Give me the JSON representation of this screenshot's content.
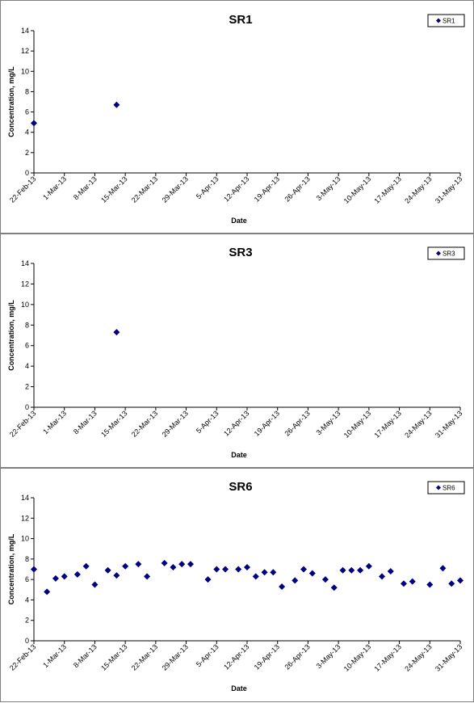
{
  "chart_data": [
    {
      "type": "scatter",
      "title": "SR1",
      "xlabel": "Date",
      "ylabel": "Concentration, mg/L",
      "ylim": [
        0,
        14
      ],
      "yticks": [
        0,
        2,
        4,
        6,
        8,
        10,
        12,
        14
      ],
      "xlim": [
        "2013-02-22",
        "2013-05-31"
      ],
      "xticks": [
        "22-Feb-13",
        "1-Mar-13",
        "8-Mar-13",
        "15-Mar-13",
        "22-Mar-13",
        "29-Mar-13",
        "5-Apr-13",
        "12-Apr-13",
        "19-Apr-13",
        "26-Apr-13",
        "3-May-13",
        "10-May-13",
        "17-May-13",
        "24-May-13",
        "31-May-13"
      ],
      "legend": "top-right",
      "grid": false,
      "marker_color": "#000080",
      "series": [
        {
          "name": "SR1",
          "x": [
            "2013-02-22",
            "2013-03-13"
          ],
          "y": [
            4.9,
            6.7
          ]
        }
      ]
    },
    {
      "type": "scatter",
      "title": "SR3",
      "xlabel": "Date",
      "ylabel": "Concentration, mg/L",
      "ylim": [
        0,
        14
      ],
      "yticks": [
        0,
        2,
        4,
        6,
        8,
        10,
        12,
        14
      ],
      "xlim": [
        "2013-02-22",
        "2013-05-31"
      ],
      "xticks": [
        "22-Feb-13",
        "1-Mar-13",
        "8-Mar-13",
        "15-Mar-13",
        "22-Mar-13",
        "29-Mar-13",
        "5-Apr-13",
        "12-Apr-13",
        "19-Apr-13",
        "26-Apr-13",
        "3-May-13",
        "10-May-13",
        "17-May-13",
        "24-May-13",
        "31-May-13"
      ],
      "legend": "top-right",
      "grid": false,
      "marker_color": "#000080",
      "series": [
        {
          "name": "SR3",
          "x": [
            "2013-03-13"
          ],
          "y": [
            7.3
          ]
        }
      ]
    },
    {
      "type": "scatter",
      "title": "SR6",
      "xlabel": "Date",
      "ylabel": "Concentration, mg/L",
      "ylim": [
        0,
        14
      ],
      "yticks": [
        0,
        2,
        4,
        6,
        8,
        10,
        12,
        14
      ],
      "xlim": [
        "2013-02-22",
        "2013-05-31"
      ],
      "xticks": [
        "22-Feb-13",
        "1-Mar-13",
        "8-Mar-13",
        "15-Mar-13",
        "22-Mar-13",
        "29-Mar-13",
        "5-Apr-13",
        "12-Apr-13",
        "19-Apr-13",
        "26-Apr-13",
        "3-May-13",
        "10-May-13",
        "17-May-13",
        "24-May-13",
        "31-May-13"
      ],
      "legend": "top-right",
      "grid": false,
      "marker_color": "#000080",
      "series": [
        {
          "name": "SR6",
          "x": [
            "2013-02-22",
            "2013-02-25",
            "2013-02-27",
            "2013-03-01",
            "2013-03-04",
            "2013-03-06",
            "2013-03-08",
            "2013-03-11",
            "2013-03-13",
            "2013-03-15",
            "2013-03-18",
            "2013-03-20",
            "2013-03-24",
            "2013-03-26",
            "2013-03-28",
            "2013-03-30",
            "2013-04-03",
            "2013-04-05",
            "2013-04-07",
            "2013-04-10",
            "2013-04-12",
            "2013-04-14",
            "2013-04-16",
            "2013-04-18",
            "2013-04-20",
            "2013-04-23",
            "2013-04-25",
            "2013-04-27",
            "2013-04-30",
            "2013-05-02",
            "2013-05-04",
            "2013-05-06",
            "2013-05-08",
            "2013-05-10",
            "2013-05-13",
            "2013-05-15",
            "2013-05-18",
            "2013-05-20",
            "2013-05-24",
            "2013-05-27",
            "2013-05-29",
            "2013-05-31"
          ],
          "y": [
            7.0,
            4.8,
            6.1,
            6.3,
            6.5,
            7.3,
            5.5,
            6.9,
            6.4,
            7.3,
            7.5,
            6.3,
            7.6,
            7.2,
            7.5,
            7.5,
            6.0,
            7.0,
            7.0,
            7.0,
            7.2,
            6.3,
            6.7,
            6.7,
            5.3,
            5.9,
            7.0,
            6.6,
            6.0,
            5.2,
            6.9,
            6.9,
            6.9,
            7.3,
            6.3,
            6.8,
            5.6,
            5.8,
            5.5,
            7.1,
            5.6,
            5.9
          ]
        }
      ]
    }
  ]
}
